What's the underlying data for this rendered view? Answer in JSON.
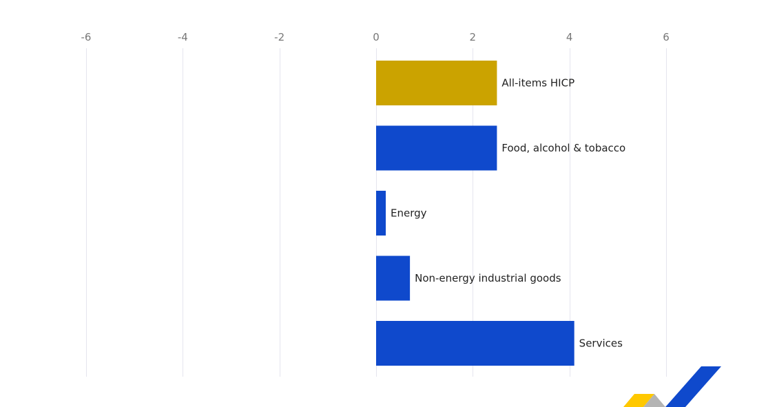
{
  "chart_data": {
    "type": "bar",
    "orientation": "horizontal",
    "title": "",
    "xlabel": "",
    "ylabel": "",
    "xlim": [
      -6,
      6
    ],
    "x_ticks": [
      -6,
      -4,
      -2,
      0,
      2,
      4,
      6
    ],
    "x_tick_labels": [
      "-6",
      "-4",
      "-2",
      "0",
      "2",
      "4",
      "6"
    ],
    "x_axis_position": "top",
    "grid": true,
    "categories": [
      "All-items HICP",
      "Food, alcohol & tobacco",
      "Energy",
      "Non-energy industrial goods",
      "Services"
    ],
    "values": [
      2.5,
      2.5,
      0.2,
      0.7,
      4.1
    ],
    "colors": [
      "#cba300",
      "#0f49cc",
      "#0f49cc",
      "#0f49cc",
      "#0f49cc"
    ]
  },
  "logo": {
    "name": "brand-logo",
    "colors": [
      "#ffc800",
      "#b4b4b4",
      "#0f49cc"
    ]
  }
}
